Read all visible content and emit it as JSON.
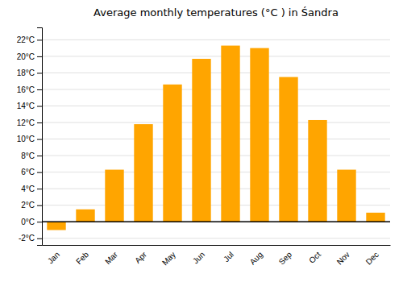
{
  "chart_data": {
    "type": "bar",
    "title": "Average monthly temperatures (°C ) in Śandra",
    "categories": [
      "Jan",
      "Feb",
      "Mar",
      "Apr",
      "May",
      "Jun",
      "Jul",
      "Aug",
      "Sep",
      "Oct",
      "Nov",
      "Dec"
    ],
    "values": [
      -1.0,
      1.5,
      6.3,
      11.8,
      16.6,
      19.7,
      21.3,
      21.0,
      17.5,
      12.3,
      6.3,
      1.1
    ],
    "color": "#FFA500",
    "ylim": [
      -2.8,
      23.5
    ],
    "yticks": [
      {
        "value": -2,
        "label": "-2°C"
      },
      {
        "value": 0,
        "label": "0°C"
      },
      {
        "value": 2,
        "label": "2°C"
      },
      {
        "value": 4,
        "label": "4°C"
      },
      {
        "value": 6,
        "label": "6°C"
      },
      {
        "value": 8,
        "label": "8°C"
      },
      {
        "value": 10,
        "label": "10°C"
      },
      {
        "value": 12,
        "label": "12°C"
      },
      {
        "value": 14,
        "label": "14°C"
      },
      {
        "value": 16,
        "label": "16°C"
      },
      {
        "value": 18,
        "label": "18°C"
      },
      {
        "value": 20,
        "label": "20°C"
      },
      {
        "value": 22,
        "label": "22°C"
      }
    ],
    "grid": true
  }
}
